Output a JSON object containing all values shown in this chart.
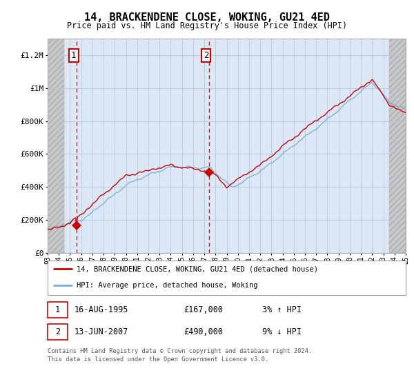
{
  "title": "14, BRACKENDENE CLOSE, WOKING, GU21 4ED",
  "subtitle": "Price paid vs. HM Land Registry's House Price Index (HPI)",
  "legend_line1": "14, BRACKENDENE CLOSE, WOKING, GU21 4ED (detached house)",
  "legend_line2": "HPI: Average price, detached house, Woking",
  "annotation1_label": "1",
  "annotation1_date": "16-AUG-1995",
  "annotation1_price": "£167,000",
  "annotation1_hpi": "3% ↑ HPI",
  "annotation2_label": "2",
  "annotation2_date": "13-JUN-2007",
  "annotation2_price": "£490,000",
  "annotation2_hpi": "9% ↓ HPI",
  "footer": "Contains HM Land Registry data © Crown copyright and database right 2024.\nThis data is licensed under the Open Government Licence v3.0.",
  "sale_color": "#cc0000",
  "hpi_color": "#7aadd4",
  "background_color": "#ffffff",
  "plot_bg_color": "#dce8f5",
  "grid_color": "#b0c8e0",
  "hatch_bg_color": "#c8c8c8",
  "ylim": [
    0,
    1300000
  ],
  "yticks": [
    0,
    200000,
    400000,
    600000,
    800000,
    1000000,
    1200000
  ],
  "ytick_labels": [
    "£0",
    "£200K",
    "£400K",
    "£600K",
    "£800K",
    "£1M",
    "£1.2M"
  ],
  "sale1_x": 1995.62,
  "sale1_y": 167000,
  "sale2_x": 2007.45,
  "sale2_y": 490000,
  "vline1_x": 1995.62,
  "vline2_x": 2007.45,
  "xmin": 1993,
  "xmax": 2025
}
